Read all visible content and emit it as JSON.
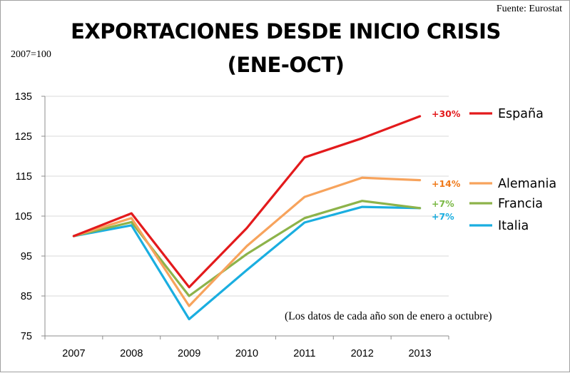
{
  "source_label": "Fuente: Eurostat",
  "title_line1": "EXPORTACIONES DESDE INICIO CRISIS",
  "title_line2": "(ENE-OCT)",
  "base_label": "2007=100",
  "note": "(Los datos de cada año son de enero a octubre)",
  "chart_data": {
    "type": "line",
    "title": "EXPORTACIONES DESDE INICIO CRISIS (ENE-OCT)",
    "ylabel": "2007=100",
    "xlabel": "",
    "categories": [
      "2007",
      "2008",
      "2009",
      "2010",
      "2011",
      "2012",
      "2013"
    ],
    "ylim": [
      75,
      135
    ],
    "yticks": [
      75,
      85,
      95,
      105,
      115,
      125,
      135
    ],
    "grid": "horizontal",
    "legend_position": "right",
    "series": [
      {
        "name": "España",
        "color": "#e31a1c",
        "values": [
          100,
          105.7,
          87.2,
          102,
          119.7,
          124.5,
          130
        ],
        "change_label": "+30%",
        "change_color": "#e31a1c"
      },
      {
        "name": "Alemania",
        "color": "#f7a35c",
        "values": [
          100,
          104.5,
          82.5,
          97.5,
          109.8,
          114.6,
          114
        ],
        "change_label": "+14%",
        "change_color": "#f07a1a"
      },
      {
        "name": "Francia",
        "color": "#8db34a",
        "values": [
          100,
          103.5,
          85,
          95.5,
          104.5,
          108.8,
          107
        ],
        "change_label": "+7%",
        "change_color": "#7ab845"
      },
      {
        "name": "Italia",
        "color": "#1aaee0",
        "values": [
          100,
          102.7,
          79.2,
          91.5,
          103.4,
          107.3,
          107
        ],
        "change_label": "+7%",
        "change_color": "#1aaee0"
      }
    ]
  }
}
